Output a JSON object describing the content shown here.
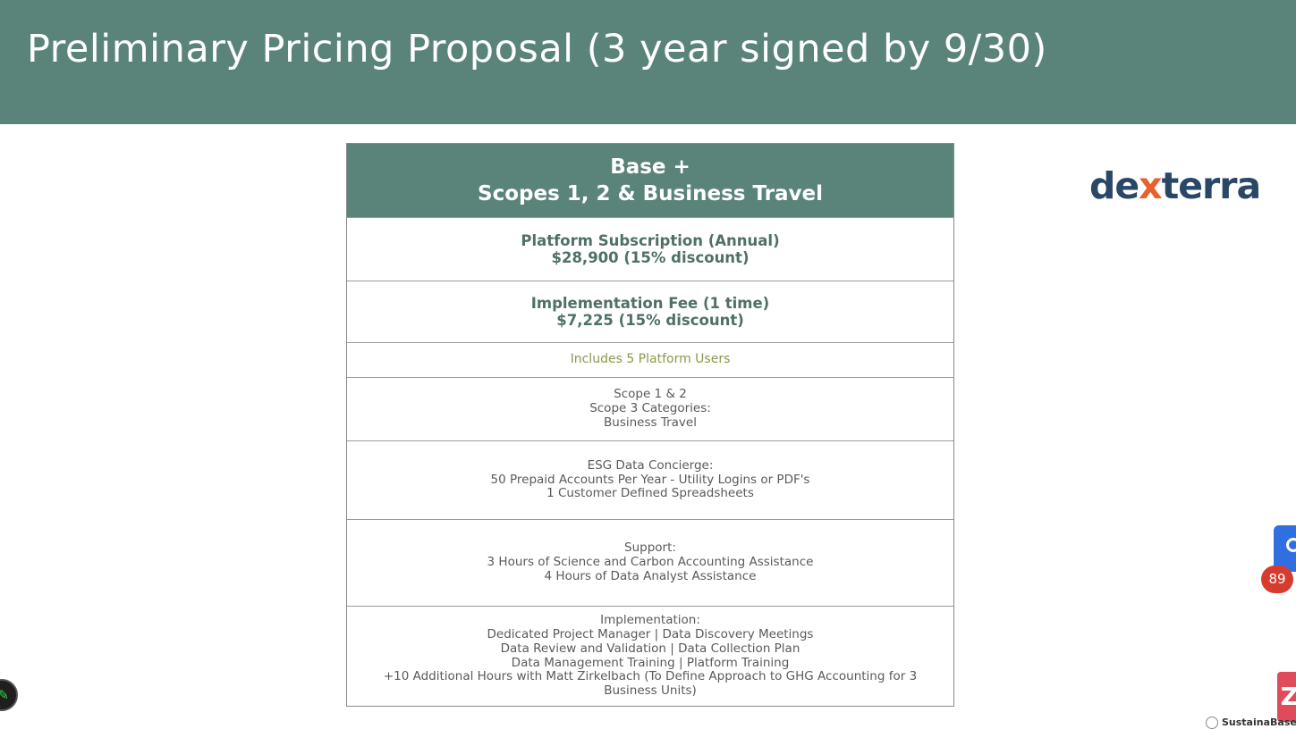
{
  "slide": {
    "title": "Preliminary Pricing Proposal (3 year signed by 9/30)"
  },
  "table": {
    "header_line1": "Base +",
    "header_line2": "Scopes 1, 2 & Business Travel",
    "platform_label": "Platform Subscription (Annual)",
    "platform_price": "$28,900 (15% discount)",
    "implementation_label": "Implementation Fee (1 time)",
    "implementation_price": "$7,225 (15% discount)",
    "users": "Includes 5 Platform Users",
    "scope_lines": [
      "Scope 1 & 2",
      "Scope 3 Categories:",
      "Business Travel"
    ],
    "concierge_lines": [
      "ESG Data Concierge:",
      "50 Prepaid Accounts Per Year - Utility Logins or PDF's",
      "1 Customer Defined Spreadsheets"
    ],
    "support_lines": [
      "Support:",
      "3 Hours of Science and Carbon Accounting Assistance",
      "4 Hours of Data Analyst Assistance"
    ],
    "implementation_lines": [
      "Implementation:",
      "Dedicated Project Manager | Data Discovery Meetings",
      "Data Review and Validation | Data Collection Plan",
      "Data Management Training | Platform Training",
      "+10 Additional Hours with Matt Zirkelbach (To Define Approach to GHG Accounting for 3",
      "Business Units)"
    ]
  },
  "logo": {
    "prefix": "de",
    "x": "x",
    "suffix": "terra"
  },
  "overlay": {
    "badge_count": "89",
    "red_tab_glyph": "Z",
    "bottom_logo_text": "SustainaBase",
    "edit_icon_glyph": "✎"
  },
  "colors": {
    "header_bg": "#5a837a",
    "logo_dark": "#2a4766",
    "logo_accent": "#e8602c",
    "users_text": "#8a9a4a"
  }
}
